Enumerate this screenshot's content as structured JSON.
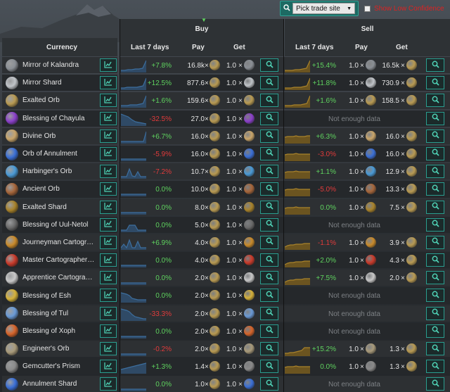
{
  "top": {
    "trade_site": "Pick trade site",
    "low_confidence": "Show Low Confidence"
  },
  "headers": {
    "currency": "Currency",
    "buy": "Buy",
    "sell": "Sell",
    "last7": "Last 7 days",
    "pay": "Pay",
    "get": "Get"
  },
  "colors": {
    "positive": "#5fd35f",
    "negative": "#e23b3b",
    "accent": "#2a9d8f",
    "spark_buy": "#3c6e9e",
    "spark_sell": "#a8822a"
  },
  "no_data_text": "Not enough data",
  "rows": [
    {
      "name": "Mirror of Kalandra",
      "icon": "mirror-icon",
      "icon_color": "#8a8f95",
      "buy": {
        "change": "+7.8%",
        "pay": "16.8k",
        "get": "1.0",
        "spark": [
          3,
          3,
          4,
          4,
          5,
          5,
          6,
          17
        ]
      },
      "sell": {
        "change": "+15.4%",
        "pay": "1.0",
        "get": "16.5k",
        "spark": [
          3,
          3,
          3,
          4,
          4,
          5,
          6,
          17
        ]
      }
    },
    {
      "name": "Mirror Shard",
      "icon": "mirror-shard-icon",
      "icon_color": "#c0c4c8",
      "buy": {
        "change": "+12.5%",
        "pay": "877.6",
        "get": "1.0",
        "spark": [
          3,
          3,
          4,
          4,
          4,
          4,
          5,
          6,
          17
        ]
      },
      "sell": {
        "change": "+11.8%",
        "pay": "1.0",
        "get": "730.9",
        "spark": [
          3,
          3,
          3,
          4,
          4,
          4,
          5,
          6,
          17
        ]
      }
    },
    {
      "name": "Exalted Orb",
      "icon": "exalted-orb-icon",
      "icon_color": "#b89a52",
      "buy": {
        "change": "+1.6%",
        "pay": "159.6",
        "get": "1.0",
        "spark": [
          3,
          3,
          3,
          4,
          4,
          4,
          5,
          6,
          17
        ]
      },
      "sell": {
        "change": "+1.6%",
        "pay": "1.0",
        "get": "158.5",
        "spark": [
          3,
          3,
          3,
          4,
          4,
          4,
          5,
          6,
          17
        ]
      }
    },
    {
      "name": "Blessing of Chayula",
      "icon": "chayula-blessing-icon",
      "icon_color": "#8a3fc9",
      "buy": {
        "change": "-32.5%",
        "pay": "27.0",
        "get": "1.0",
        "spark": [
          17,
          15,
          13,
          9,
          6,
          5,
          4,
          3
        ]
      },
      "sell": null
    },
    {
      "name": "Divine Orb",
      "icon": "divine-orb-icon",
      "icon_color": "#c9a56a",
      "buy": {
        "change": "+6.7%",
        "pay": "16.0",
        "get": "1.0",
        "spark": [
          3,
          3,
          3,
          3,
          3,
          3,
          3,
          3,
          3,
          17
        ]
      },
      "sell": {
        "change": "+6.3%",
        "pay": "1.0",
        "get": "16.0",
        "spark": [
          9,
          10,
          10,
          10,
          11,
          10,
          10,
          10,
          11,
          11
        ]
      }
    },
    {
      "name": "Orb of Annulment",
      "icon": "annulment-orb-icon",
      "icon_color": "#3a6fd6",
      "buy": {
        "change": "-5.9%",
        "pay": "16.0",
        "get": "1.0",
        "spark": [
          3,
          3,
          3,
          3,
          3,
          3,
          3,
          3,
          3,
          3
        ]
      },
      "sell": {
        "change": "-3.0%",
        "pay": "1.0",
        "get": "16.0",
        "spark": [
          9,
          10,
          10,
          10,
          11,
          10,
          10,
          10,
          10,
          10
        ]
      }
    },
    {
      "name": "Harbinger's Orb",
      "icon": "harbinger-orb-icon",
      "icon_color": "#4a9ad6",
      "buy": {
        "change": "-7.2%",
        "pay": "10.7",
        "get": "1.0",
        "spark": [
          3,
          3,
          3,
          14,
          4,
          3,
          10,
          3,
          3,
          3
        ]
      },
      "sell": {
        "change": "+1.1%",
        "pay": "1.0",
        "get": "12.9",
        "spark": [
          9,
          10,
          10,
          10,
          11,
          10,
          10,
          10,
          10,
          10
        ]
      }
    },
    {
      "name": "Ancient Orb",
      "icon": "ancient-orb-icon",
      "icon_color": "#a5653a",
      "buy": {
        "change": "0.0%",
        "pay": "10.0",
        "get": "1.0",
        "spark": [
          3,
          3,
          3,
          3,
          3,
          3,
          3,
          3,
          3,
          3
        ]
      },
      "sell": {
        "change": "-5.0%",
        "pay": "1.0",
        "get": "13.3",
        "spark": [
          9,
          10,
          10,
          10,
          11,
          10,
          10,
          10,
          10,
          10
        ]
      }
    },
    {
      "name": "Exalted Shard",
      "icon": "exalted-shard-icon",
      "icon_color": "#a8822a",
      "buy": {
        "change": "0.0%",
        "pay": "8.0",
        "get": "1.0",
        "spark": [
          3,
          3,
          3,
          3,
          3,
          3,
          3,
          3,
          3,
          3
        ]
      },
      "sell": {
        "change": "0.0%",
        "pay": "1.0",
        "get": "7.5",
        "spark": [
          9,
          10,
          10,
          10,
          11,
          10,
          10,
          10,
          10,
          10
        ]
      }
    },
    {
      "name": "Blessing of Uul-Netol",
      "icon": "uul-netol-blessing-icon",
      "icon_color": "#6a6a6a",
      "buy": {
        "change": "0.0%",
        "pay": "5.0",
        "get": "1.0",
        "spark": [
          3,
          3,
          3,
          10,
          10,
          10,
          3,
          3,
          3,
          3
        ]
      },
      "sell": null
    },
    {
      "name": "Journeyman Cartographer's Sextant",
      "icon": "journeyman-sextant-icon",
      "icon_color": "#c98a2a",
      "buy": {
        "change": "+6.9%",
        "pay": "4.0",
        "get": "1.0",
        "spark": [
          3,
          8,
          3,
          14,
          3,
          3,
          12,
          3,
          3,
          3
        ]
      },
      "sell": {
        "change": "-1.1%",
        "pay": "1.0",
        "get": "3.9",
        "spark": [
          4,
          6,
          7,
          7,
          8,
          8,
          8,
          9,
          9,
          9
        ]
      }
    },
    {
      "name": "Master Cartographer's Sextant",
      "icon": "master-sextant-icon",
      "icon_color": "#c93a2a",
      "buy": {
        "change": "0.0%",
        "pay": "4.0",
        "get": "1.0",
        "spark": [
          3,
          3,
          3,
          3,
          3,
          3,
          3,
          3,
          3,
          3
        ]
      },
      "sell": {
        "change": "+2.0%",
        "pay": "1.0",
        "get": "4.3",
        "spark": [
          4,
          6,
          7,
          7,
          8,
          8,
          8,
          9,
          9,
          9
        ]
      }
    },
    {
      "name": "Apprentice Cartographer's Sextant",
      "icon": "apprentice-sextant-icon",
      "icon_color": "#c8c8c8",
      "buy": {
        "change": "0.0%",
        "pay": "2.0",
        "get": "1.0",
        "spark": [
          3,
          3,
          3,
          3,
          3,
          3,
          3,
          3,
          3,
          3
        ]
      },
      "sell": {
        "change": "+7.5%",
        "pay": "1.0",
        "get": "2.0",
        "spark": [
          4,
          6,
          7,
          7,
          8,
          8,
          8,
          9,
          9,
          9
        ]
      }
    },
    {
      "name": "Blessing of Esh",
      "icon": "esh-blessing-icon",
      "icon_color": "#d6b23a",
      "buy": {
        "change": "0.0%",
        "pay": "2.0",
        "get": "1.0",
        "spark": [
          14,
          13,
          12,
          10,
          6,
          5,
          4,
          4,
          4,
          4
        ]
      },
      "sell": null
    },
    {
      "name": "Blessing of Tul",
      "icon": "tul-blessing-icon",
      "icon_color": "#6a9ad6",
      "buy": {
        "change": "-33.3%",
        "pay": "2.0",
        "get": "1.0",
        "spark": [
          17,
          16,
          15,
          13,
          9,
          6,
          5,
          4,
          3,
          3
        ]
      },
      "sell": null
    },
    {
      "name": "Blessing of Xoph",
      "icon": "xoph-blessing-icon",
      "icon_color": "#d6642a",
      "buy": {
        "change": "0.0%",
        "pay": "2.0",
        "get": "1.0",
        "spark": [
          3,
          3,
          3,
          3,
          3,
          3,
          3,
          3,
          3,
          3
        ]
      },
      "sell": null
    },
    {
      "name": "Engineer's Orb",
      "icon": "engineer-orb-icon",
      "icon_color": "#a89a7a",
      "buy": {
        "change": "-0.2%",
        "pay": "2.0",
        "get": "1.0",
        "spark": [
          3,
          3,
          3,
          3,
          3,
          3,
          3,
          3,
          3,
          3
        ]
      },
      "sell": {
        "change": "+15.2%",
        "pay": "1.0",
        "get": "1.3",
        "spark": [
          4,
          4,
          5,
          5,
          6,
          7,
          8,
          12,
          12,
          12
        ]
      }
    },
    {
      "name": "Gemcutter's Prism",
      "icon": "gemcutter-prism-icon",
      "icon_color": "#8a8a8a",
      "buy": {
        "change": "+1.3%",
        "pay": "1.4",
        "get": "1.0",
        "spark": [
          6,
          7,
          8,
          9,
          10,
          11,
          12,
          13,
          14,
          15
        ]
      },
      "sell": {
        "change": "0.0%",
        "pay": "1.0",
        "get": "1.3",
        "spark": [
          9,
          10,
          10,
          10,
          11,
          10,
          10,
          10,
          10,
          10
        ]
      }
    },
    {
      "name": "Annulment Shard",
      "icon": "annulment-shard-icon",
      "icon_color": "#3a6fd6",
      "buy": {
        "change": "0.0%",
        "pay": "1.0",
        "get": "1.0",
        "spark": [
          3,
          3,
          3,
          3,
          3,
          3,
          3,
          3,
          3,
          3
        ]
      },
      "sell": null
    }
  ]
}
